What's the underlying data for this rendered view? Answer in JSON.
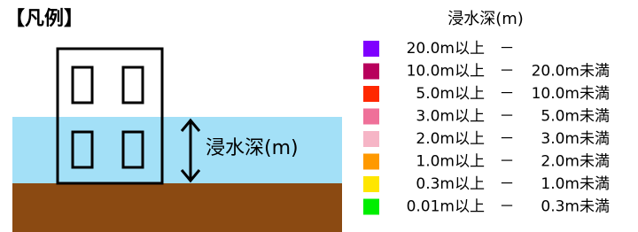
{
  "header": {
    "title": "【凡例】"
  },
  "illustration": {
    "label": "浸水深(m)"
  },
  "legend": {
    "title": "浸水深(m)",
    "items": [
      {
        "color": "#7f00ff",
        "from": "20.0m以上",
        "sep": "－"
      },
      {
        "color": "#b8005c",
        "from": "10.0m以上",
        "sep": "－",
        "to": "20.0m未満"
      },
      {
        "color": "#ff2800",
        "from": "5.0m以上",
        "sep": "－",
        "to": "10.0m未満"
      },
      {
        "color": "#ef7099",
        "from": "3.0m以上",
        "sep": "－",
        "to": "5.0m未満"
      },
      {
        "color": "#f6b5c6",
        "from": "2.0m以上",
        "sep": "－",
        "to": "3.0m未満"
      },
      {
        "color": "#ff9900",
        "from": "1.0m以上",
        "sep": "－",
        "to": "2.0m未満"
      },
      {
        "color": "#ffe600",
        "from": "0.3m以上",
        "sep": "－",
        "to": "1.0m未満"
      },
      {
        "color": "#00ee00",
        "from": "0.01m以上",
        "sep": "－",
        "to": "0.3m未満"
      }
    ]
  }
}
